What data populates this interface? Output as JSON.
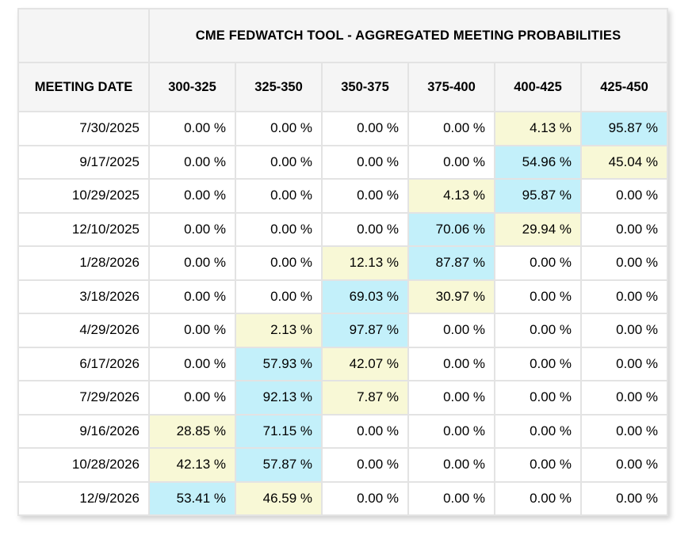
{
  "header": {
    "title": "CME FEDWATCH TOOL - AGGREGATED MEETING PROBABILITIES",
    "row_label_header": "MEETING DATE",
    "rate_range_columns": [
      "300-325",
      "325-350",
      "350-375",
      "375-400",
      "400-425",
      "425-450"
    ]
  },
  "chart_data": {
    "type": "table",
    "title": "CME FEDWATCH TOOL - AGGREGATED MEETING PROBABILITIES",
    "row_header": "MEETING DATE",
    "columns": [
      "300-325",
      "325-350",
      "350-375",
      "375-400",
      "400-425",
      "425-450"
    ],
    "unit": "%",
    "highlight_legend": {
      "cyan": "highest probability in row",
      "yellow": "second highest probability in row"
    },
    "rows": [
      {
        "date": "7/30/2025",
        "values": [
          0.0,
          0.0,
          0.0,
          0.0,
          4.13,
          95.87
        ],
        "display": [
          "0.00 %",
          "0.00 %",
          "0.00 %",
          "0.00 %",
          "4.13 %",
          "95.87 %"
        ],
        "highlights": [
          "none",
          "none",
          "none",
          "none",
          "yellow",
          "cyan"
        ]
      },
      {
        "date": "9/17/2025",
        "values": [
          0.0,
          0.0,
          0.0,
          0.0,
          54.96,
          45.04
        ],
        "display": [
          "0.00 %",
          "0.00 %",
          "0.00 %",
          "0.00 %",
          "54.96 %",
          "45.04 %"
        ],
        "highlights": [
          "none",
          "none",
          "none",
          "none",
          "cyan",
          "yellow"
        ]
      },
      {
        "date": "10/29/2025",
        "values": [
          0.0,
          0.0,
          0.0,
          4.13,
          95.87,
          0.0
        ],
        "display": [
          "0.00 %",
          "0.00 %",
          "0.00 %",
          "4.13 %",
          "95.87 %",
          "0.00 %"
        ],
        "highlights": [
          "none",
          "none",
          "none",
          "yellow",
          "cyan",
          "none"
        ]
      },
      {
        "date": "12/10/2025",
        "values": [
          0.0,
          0.0,
          0.0,
          70.06,
          29.94,
          0.0
        ],
        "display": [
          "0.00 %",
          "0.00 %",
          "0.00 %",
          "70.06 %",
          "29.94 %",
          "0.00 %"
        ],
        "highlights": [
          "none",
          "none",
          "none",
          "cyan",
          "yellow",
          "none"
        ]
      },
      {
        "date": "1/28/2026",
        "values": [
          0.0,
          0.0,
          12.13,
          87.87,
          0.0,
          0.0
        ],
        "display": [
          "0.00 %",
          "0.00 %",
          "12.13 %",
          "87.87 %",
          "0.00 %",
          "0.00 %"
        ],
        "highlights": [
          "none",
          "none",
          "yellow",
          "cyan",
          "none",
          "none"
        ]
      },
      {
        "date": "3/18/2026",
        "values": [
          0.0,
          0.0,
          69.03,
          30.97,
          0.0,
          0.0
        ],
        "display": [
          "0.00 %",
          "0.00 %",
          "69.03 %",
          "30.97 %",
          "0.00 %",
          "0.00 %"
        ],
        "highlights": [
          "none",
          "none",
          "cyan",
          "yellow",
          "none",
          "none"
        ]
      },
      {
        "date": "4/29/2026",
        "values": [
          0.0,
          2.13,
          97.87,
          0.0,
          0.0,
          0.0
        ],
        "display": [
          "0.00 %",
          "2.13 %",
          "97.87 %",
          "0.00 %",
          "0.00 %",
          "0.00 %"
        ],
        "highlights": [
          "none",
          "yellow",
          "cyan",
          "none",
          "none",
          "none"
        ]
      },
      {
        "date": "6/17/2026",
        "values": [
          0.0,
          57.93,
          42.07,
          0.0,
          0.0,
          0.0
        ],
        "display": [
          "0.00 %",
          "57.93 %",
          "42.07 %",
          "0.00 %",
          "0.00 %",
          "0.00 %"
        ],
        "highlights": [
          "none",
          "cyan",
          "yellow",
          "none",
          "none",
          "none"
        ]
      },
      {
        "date": "7/29/2026",
        "values": [
          0.0,
          92.13,
          7.87,
          0.0,
          0.0,
          0.0
        ],
        "display": [
          "0.00 %",
          "92.13 %",
          "7.87 %",
          "0.00 %",
          "0.00 %",
          "0.00 %"
        ],
        "highlights": [
          "none",
          "cyan",
          "yellow",
          "none",
          "none",
          "none"
        ]
      },
      {
        "date": "9/16/2026",
        "values": [
          28.85,
          71.15,
          0.0,
          0.0,
          0.0,
          0.0
        ],
        "display": [
          "28.85 %",
          "71.15 %",
          "0.00 %",
          "0.00 %",
          "0.00 %",
          "0.00 %"
        ],
        "highlights": [
          "yellow",
          "cyan",
          "none",
          "none",
          "none",
          "none"
        ]
      },
      {
        "date": "10/28/2026",
        "values": [
          42.13,
          57.87,
          0.0,
          0.0,
          0.0,
          0.0
        ],
        "display": [
          "42.13 %",
          "57.87 %",
          "0.00 %",
          "0.00 %",
          "0.00 %",
          "0.00 %"
        ],
        "highlights": [
          "yellow",
          "cyan",
          "none",
          "none",
          "none",
          "none"
        ]
      },
      {
        "date": "12/9/2026",
        "values": [
          53.41,
          46.59,
          0.0,
          0.0,
          0.0,
          0.0
        ],
        "display": [
          "53.41 %",
          "46.59 %",
          "0.00 %",
          "0.00 %",
          "0.00 %",
          "0.00 %"
        ],
        "highlights": [
          "cyan",
          "yellow",
          "none",
          "none",
          "none",
          "none"
        ]
      }
    ]
  },
  "colors": {
    "highlight_cyan": "#c3f0fa",
    "highlight_yellow": "#f8f8d6",
    "header_bg": "#f5f5f5",
    "cell_border": "#e3e3e3",
    "text": "#000000",
    "page_bg": "#ffffff"
  }
}
